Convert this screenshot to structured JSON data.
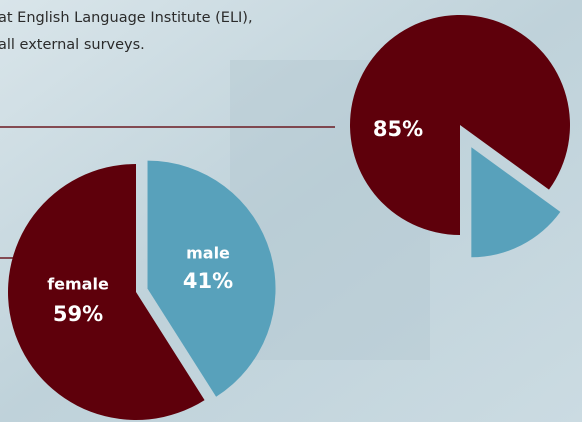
{
  "text_lines": [
    "at English Language Institute (ELI),",
    "all external surveys."
  ],
  "chart_data": [
    {
      "type": "pie",
      "values": [
        85,
        15
      ],
      "value_labels": [
        "85%",
        null
      ],
      "colors": [
        "#5e000b",
        "#58a1bb"
      ]
    },
    {
      "type": "pie",
      "categories": [
        "female",
        "male"
      ],
      "values": [
        59,
        41
      ],
      "value_labels": [
        "59%",
        "41%"
      ],
      "colors": [
        "#5e000b",
        "#58a1bb"
      ]
    }
  ]
}
